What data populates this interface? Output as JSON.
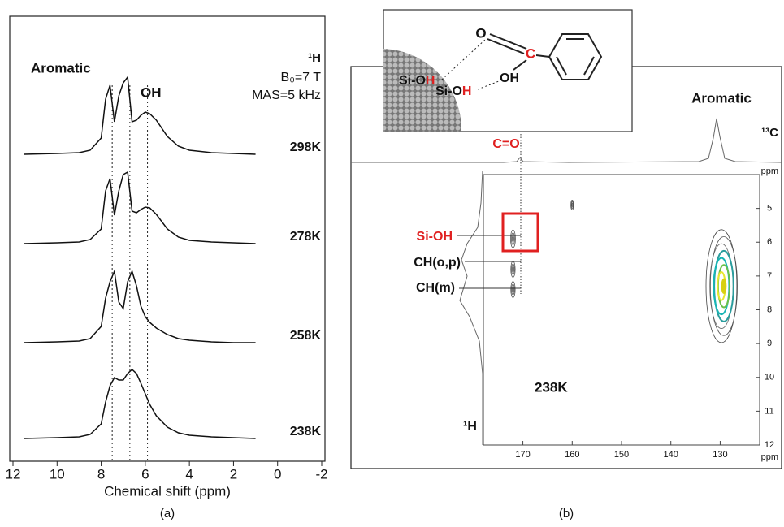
{
  "chart_data": [
    {
      "type": "line",
      "panel_label": "(a)",
      "x_label": "Chemical shift (ppm)",
      "annotations": {
        "aromatic": "Aromatic",
        "oh": "OH",
        "nucleus": "¹H",
        "field": "B₀=7 T",
        "spin": "MAS=5 kHz"
      },
      "xlim": [
        12,
        -2
      ],
      "xticks": [
        12,
        10,
        8,
        6,
        4,
        2,
        0,
        -2
      ],
      "x": [
        11.5,
        10,
        9,
        8.5,
        8,
        7.8,
        7.6,
        7.4,
        7.2,
        7,
        6.8,
        6.6,
        6.4,
        6.2,
        6,
        5.8,
        5.5,
        5,
        4.5,
        4,
        3,
        2,
        1
      ],
      "reference_lines": [
        7.5,
        6.7,
        5.9
      ],
      "series": [
        {
          "name": "298K",
          "color": "#111",
          "values": [
            0,
            1,
            2,
            5,
            20,
            68,
            85,
            40,
            72,
            88,
            95,
            40,
            42,
            48,
            52,
            50,
            42,
            22,
            10,
            5,
            2,
            1,
            0
          ]
        },
        {
          "name": "278K",
          "color": "#111",
          "values": [
            0,
            1,
            2,
            5,
            18,
            65,
            80,
            35,
            65,
            85,
            88,
            40,
            38,
            42,
            45,
            44,
            36,
            18,
            8,
            4,
            2,
            1,
            0
          ]
        },
        {
          "name": "258K",
          "color": "#111",
          "values": [
            0,
            1,
            2,
            5,
            20,
            55,
            75,
            88,
            50,
            42,
            75,
            88,
            70,
            45,
            32,
            25,
            18,
            10,
            5,
            3,
            1,
            0,
            0
          ]
        },
        {
          "name": "238K",
          "color": "#111",
          "values": [
            0,
            1,
            2,
            5,
            18,
            45,
            65,
            75,
            72,
            72,
            80,
            85,
            80,
            68,
            55,
            42,
            28,
            14,
            7,
            4,
            2,
            1,
            0
          ]
        }
      ]
    },
    {
      "type": "contour",
      "panel_label": "(b)",
      "temperature": "238K",
      "annotations": {
        "aromatic": "Aromatic",
        "carbon_nucleus": "¹³C",
        "carbonyl": "C=O",
        "x_unit": "ppm",
        "y_unit": "ppm",
        "proton_nucleus": "¹H"
      },
      "peak_labels": [
        "Si-OH",
        "CH(o,p)",
        "CH(m)"
      ],
      "xlim": [
        178,
        122
      ],
      "xticks": [
        170,
        160,
        150,
        140,
        130
      ],
      "ylim": [
        4,
        12
      ],
      "yticks": [
        5,
        6,
        7,
        8,
        9,
        10,
        11,
        12
      ],
      "peaks": {
        "x": [
          172,
          172,
          172,
          160,
          129.5
        ],
        "y": [
          5.9,
          6.8,
          7.4,
          4.9,
          7.3
        ],
        "intensity": [
          1,
          0.8,
          0.8,
          0.3,
          40
        ]
      },
      "contour_colors": [
        "#444",
        "#555",
        "#666",
        "#2a9d9d",
        "#18b5b5",
        "#6cc04a",
        "#e8e830",
        "#d8d010"
      ]
    }
  ],
  "inset": {
    "silanol": [
      [
        "Si-O",
        "H"
      ],
      [
        "Si-O",
        "H"
      ]
    ],
    "carbonyl_o": "O",
    "carbon": "C",
    "hydroxyl": "OH"
  }
}
